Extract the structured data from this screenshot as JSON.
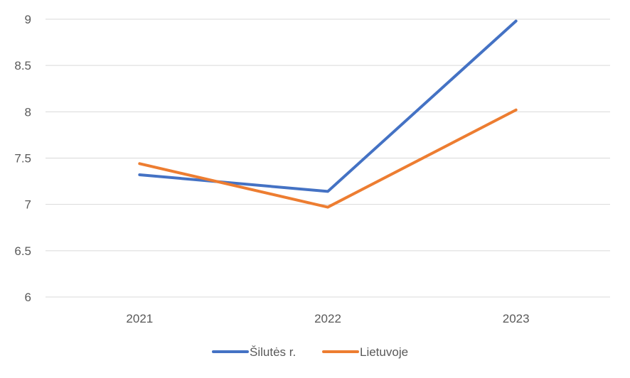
{
  "chart_data": {
    "type": "line",
    "categories": [
      "2021",
      "2022",
      "2023"
    ],
    "series": [
      {
        "name": "Šilutės r.",
        "values": [
          7.32,
          7.14,
          8.98
        ],
        "color": "#4472c4"
      },
      {
        "name": "Lietuvoje",
        "values": [
          7.44,
          6.97,
          8.02
        ],
        "color": "#ed7d31"
      }
    ],
    "ylim": [
      6,
      9
    ],
    "yticks": [
      "6",
      "6.5",
      "7",
      "7.5",
      "8",
      "8.5",
      "9"
    ],
    "grid": true,
    "legend": "bottom",
    "title": "",
    "xlabel": "",
    "ylabel": ""
  }
}
